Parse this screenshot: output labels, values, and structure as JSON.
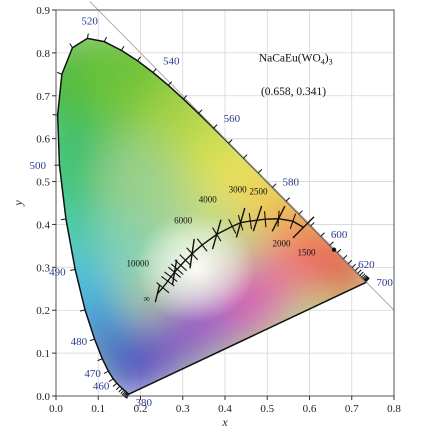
{
  "chart_data": {
    "type": "scatter",
    "title": "",
    "xlabel": "x",
    "ylabel": "y",
    "xlim": [
      0.0,
      0.8
    ],
    "ylim": [
      0.0,
      0.9
    ],
    "grid": true,
    "x_ticks": [
      "0.0",
      "0.1",
      "0.2",
      "0.3",
      "0.4",
      "0.5",
      "0.6",
      "0.7",
      "0.8"
    ],
    "y_ticks": [
      "0.0",
      "0.1",
      "0.2",
      "0.3",
      "0.4",
      "0.5",
      "0.6",
      "0.7",
      "0.8",
      "0.9"
    ],
    "spectral_locus": [
      [
        0.1741,
        0.005
      ],
      [
        0.1738,
        0.0049
      ],
      [
        0.1736,
        0.0049
      ],
      [
        0.1733,
        0.0048
      ],
      [
        0.173,
        0.0048
      ],
      [
        0.1726,
        0.0048
      ],
      [
        0.1721,
        0.0048
      ],
      [
        0.1714,
        0.0051
      ],
      [
        0.1703,
        0.0058
      ],
      [
        0.1689,
        0.0069
      ],
      [
        0.1669,
        0.0086
      ],
      [
        0.1644,
        0.0109
      ],
      [
        0.1611,
        0.0138
      ],
      [
        0.1566,
        0.0177
      ],
      [
        0.151,
        0.0227
      ],
      [
        0.144,
        0.0297
      ],
      [
        0.1355,
        0.0399
      ],
      [
        0.1241,
        0.0578
      ],
      [
        0.1096,
        0.0868
      ],
      [
        0.0913,
        0.1327
      ],
      [
        0.0687,
        0.2007
      ],
      [
        0.0454,
        0.295
      ],
      [
        0.0235,
        0.4127
      ],
      [
        0.0082,
        0.5384
      ],
      [
        0.0039,
        0.6548
      ],
      [
        0.0139,
        0.7502
      ],
      [
        0.0389,
        0.812
      ],
      [
        0.0743,
        0.8338
      ],
      [
        0.1142,
        0.8262
      ],
      [
        0.1547,
        0.8059
      ],
      [
        0.1929,
        0.7816
      ],
      [
        0.2296,
        0.7543
      ],
      [
        0.2658,
        0.7243
      ],
      [
        0.3016,
        0.6923
      ],
      [
        0.3373,
        0.6589
      ],
      [
        0.3731,
        0.6245
      ],
      [
        0.4087,
        0.5896
      ],
      [
        0.4441,
        0.5547
      ],
      [
        0.4788,
        0.5202
      ],
      [
        0.5125,
        0.4866
      ],
      [
        0.5448,
        0.4544
      ],
      [
        0.5752,
        0.4242
      ],
      [
        0.6029,
        0.3965
      ],
      [
        0.627,
        0.3725
      ],
      [
        0.6482,
        0.3514
      ],
      [
        0.6658,
        0.334
      ],
      [
        0.6801,
        0.3197
      ],
      [
        0.6915,
        0.3083
      ],
      [
        0.7006,
        0.2993
      ],
      [
        0.7079,
        0.292
      ],
      [
        0.714,
        0.2859
      ],
      [
        0.719,
        0.2809
      ],
      [
        0.723,
        0.277
      ],
      [
        0.726,
        0.274
      ],
      [
        0.7283,
        0.2717
      ],
      [
        0.73,
        0.27
      ],
      [
        0.7311,
        0.2689
      ],
      [
        0.732,
        0.268
      ],
      [
        0.7327,
        0.2673
      ],
      [
        0.7334,
        0.2666
      ],
      [
        0.734,
        0.266
      ],
      [
        0.7344,
        0.2656
      ],
      [
        0.7346,
        0.2654
      ],
      [
        0.7347,
        0.2653
      ]
    ],
    "wavelength_labels": [
      {
        "text": "520",
        "x": 0.0743,
        "y": 0.8338
      },
      {
        "text": "540",
        "x": 0.2296,
        "y": 0.7543
      },
      {
        "text": "560",
        "x": 0.3731,
        "y": 0.6245
      },
      {
        "text": "580",
        "x": 0.5125,
        "y": 0.4866
      },
      {
        "text": "600",
        "x": 0.627,
        "y": 0.3725
      },
      {
        "text": "620",
        "x": 0.6915,
        "y": 0.3083
      },
      {
        "text": "700",
        "x": 0.7347,
        "y": 0.2653
      },
      {
        "text": "500",
        "x": 0.0082,
        "y": 0.5384
      },
      {
        "text": "490",
        "x": 0.0454,
        "y": 0.295
      },
      {
        "text": "480",
        "x": 0.0913,
        "y": 0.1327
      },
      {
        "text": "470",
        "x": 0.1241,
        "y": 0.0578
      },
      {
        "text": "460",
        "x": 0.144,
        "y": 0.0297
      },
      {
        "text": "380",
        "x": 0.1741,
        "y": 0.005
      }
    ],
    "planckian_locus": [
      [
        0.5857,
        0.3931
      ],
      [
        0.5607,
        0.4075
      ],
      [
        0.5267,
        0.4133
      ],
      [
        0.4952,
        0.4122
      ],
      [
        0.46,
        0.4078
      ],
      [
        0.4369,
        0.4041
      ],
      [
        0.4172,
        0.3955
      ],
      [
        0.3805,
        0.3768
      ],
      [
        0.3459,
        0.3522
      ],
      [
        0.3221,
        0.3318
      ],
      [
        0.3064,
        0.3166
      ],
      [
        0.2952,
        0.3048
      ],
      [
        0.2869,
        0.2956
      ],
      [
        0.2806,
        0.2884
      ],
      [
        0.2719,
        0.278
      ],
      [
        0.2647,
        0.2678
      ],
      [
        0.2528,
        0.2526
      ],
      [
        0.24,
        0.2385
      ]
    ],
    "isotherms": [
      {
        "label": "1500",
        "center": [
          0.5857,
          0.3931
        ]
      },
      {
        "label": "2000",
        "center": [
          0.5267,
          0.4133
        ]
      },
      {
        "label": "2500",
        "center": [
          0.4769,
          0.4137
        ]
      },
      {
        "label": "3000",
        "center": [
          0.4369,
          0.4041
        ]
      },
      {
        "label": "4000",
        "center": [
          0.3805,
          0.3768
        ]
      },
      {
        "label": "6000",
        "center": [
          0.3221,
          0.3318
        ]
      },
      {
        "label": "10000",
        "center": [
          0.2806,
          0.2884
        ]
      },
      {
        "label": "∞",
        "center": [
          0.24,
          0.2385
        ]
      }
    ],
    "annotations": [
      {
        "text": "NaCaEu(WO",
        "sub": "4",
        "tail": ")",
        "sub2": "3",
        "x": 0.57,
        "y": 0.78
      },
      {
        "text": "(0.658, 0.341)",
        "x": 0.575,
        "y": 0.72
      }
    ],
    "sample_point": {
      "x": 0.658,
      "y": 0.341
    }
  }
}
